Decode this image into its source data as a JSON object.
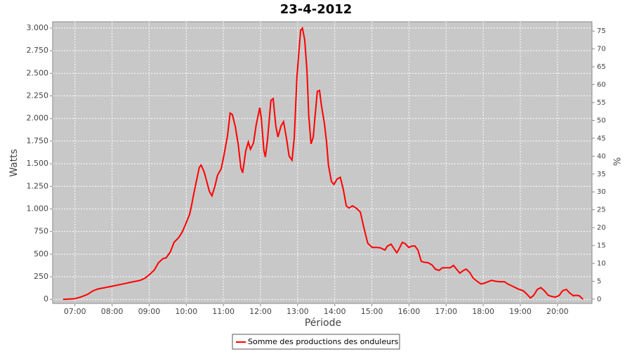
{
  "chart_data": {
    "type": "line",
    "title": "23-4-2012",
    "x_label": "Période",
    "y_label": "Watts",
    "y2_label": "%",
    "x": [
      6.68,
      7.0,
      7.15,
      7.34,
      7.49,
      7.62,
      7.81,
      8.0,
      8.29,
      8.57,
      8.76,
      8.89,
      9.01,
      9.14,
      9.25,
      9.37,
      9.46,
      9.57,
      9.67,
      9.8,
      9.89,
      9.99,
      10.09,
      10.14,
      10.2,
      10.27,
      10.35,
      10.4,
      10.48,
      10.56,
      10.62,
      10.69,
      10.77,
      10.84,
      10.94,
      11.01,
      11.11,
      11.18,
      11.24,
      11.32,
      11.4,
      11.47,
      11.52,
      11.6,
      11.67,
      11.73,
      11.81,
      11.88,
      11.98,
      12.02,
      12.09,
      12.13,
      12.19,
      12.28,
      12.34,
      12.41,
      12.47,
      12.55,
      12.62,
      12.7,
      12.77,
      12.85,
      12.91,
      12.98,
      13.08,
      13.13,
      13.19,
      13.25,
      13.3,
      13.36,
      13.42,
      13.47,
      13.53,
      13.59,
      13.64,
      13.72,
      13.78,
      13.83,
      13.91,
      13.98,
      14.06,
      14.15,
      14.23,
      14.31,
      14.38,
      14.48,
      14.59,
      14.69,
      14.78,
      14.89,
      15.01,
      15.12,
      15.23,
      15.35,
      15.42,
      15.52,
      15.59,
      15.67,
      15.73,
      15.82,
      15.9,
      15.99,
      16.09,
      16.16,
      16.24,
      16.33,
      16.41,
      16.52,
      16.62,
      16.71,
      16.81,
      16.9,
      17.01,
      17.11,
      17.2,
      17.28,
      17.37,
      17.47,
      17.54,
      17.64,
      17.73,
      17.85,
      17.94,
      18.04,
      18.13,
      18.22,
      18.34,
      18.45,
      18.57,
      18.66,
      18.79,
      18.94,
      19.08,
      19.17,
      19.27,
      19.36,
      19.46,
      19.55,
      19.65,
      19.75,
      19.86,
      19.95,
      20.05,
      20.14,
      20.24,
      20.33,
      20.43,
      20.5,
      20.59,
      20.69
    ],
    "series": [
      {
        "name": "Somme des productions des onduleurs",
        "color": "#ff0000",
        "values": [
          0,
          8,
          25,
          55,
          95,
          115,
          130,
          145,
          170,
          195,
          210,
          235,
          275,
          325,
          405,
          450,
          460,
          525,
          630,
          685,
          745,
          840,
          940,
          1035,
          1165,
          1305,
          1460,
          1485,
          1410,
          1290,
          1195,
          1145,
          1250,
          1370,
          1445,
          1585,
          1810,
          2060,
          2045,
          1910,
          1710,
          1455,
          1400,
          1640,
          1740,
          1660,
          1730,
          1925,
          2120,
          2005,
          1645,
          1575,
          1770,
          2200,
          2220,
          1920,
          1795,
          1915,
          1965,
          1780,
          1585,
          1540,
          1795,
          2455,
          2975,
          3000,
          2870,
          2535,
          2030,
          1720,
          1795,
          2030,
          2300,
          2310,
          2145,
          1950,
          1735,
          1485,
          1305,
          1270,
          1330,
          1350,
          1215,
          1035,
          1010,
          1035,
          1005,
          965,
          800,
          620,
          575,
          575,
          570,
          545,
          590,
          610,
          565,
          515,
          555,
          630,
          615,
          575,
          590,
          590,
          545,
          420,
          410,
          405,
          380,
          335,
          320,
          350,
          350,
          350,
          375,
          335,
          290,
          320,
          335,
          295,
          235,
          195,
          170,
          180,
          195,
          210,
          200,
          195,
          195,
          170,
          145,
          115,
          95,
          60,
          15,
          45,
          110,
          130,
          95,
          45,
          30,
          25,
          45,
          95,
          110,
          70,
          40,
          45,
          40,
          0
        ]
      }
    ],
    "xlim": [
      6.4,
      20.93
    ],
    "xticks": [
      {
        "value": 7,
        "label": "07:00"
      },
      {
        "value": 8,
        "label": "08:00"
      },
      {
        "value": 9,
        "label": "09:00"
      },
      {
        "value": 10,
        "label": "10:00"
      },
      {
        "value": 11,
        "label": "11:00"
      },
      {
        "value": 12,
        "label": "12:00"
      },
      {
        "value": 13,
        "label": "13:00"
      },
      {
        "value": 14,
        "label": "14:00"
      },
      {
        "value": 15,
        "label": "15:00"
      },
      {
        "value": 16,
        "label": "16:00"
      },
      {
        "value": 17,
        "label": "17:00"
      },
      {
        "value": 18,
        "label": "18:00"
      },
      {
        "value": 19,
        "label": "19:00"
      },
      {
        "value": 20,
        "label": "20:00"
      }
    ],
    "ylim": [
      -45,
      3070
    ],
    "yticks": [
      0,
      250,
      500,
      750,
      {
        "value": 1000,
        "label": "1.000"
      },
      {
        "value": 1250,
        "label": "1.250"
      },
      {
        "value": 1500,
        "label": "1.500"
      },
      {
        "value": 1750,
        "label": "1.750"
      },
      {
        "value": 2000,
        "label": "2.000"
      },
      {
        "value": 2250,
        "label": "2.250"
      },
      {
        "value": 2500,
        "label": "2.500"
      },
      {
        "value": 2750,
        "label": "2.750"
      },
      {
        "value": 3000,
        "label": "3.000"
      }
    ],
    "y2lim": [
      -1.2,
      77.6
    ],
    "y2ticks": [
      0,
      5,
      10,
      15,
      20,
      25,
      30,
      35,
      40,
      45,
      50,
      55,
      60,
      65,
      70,
      75
    ],
    "grid": true,
    "legend": "bottom"
  }
}
